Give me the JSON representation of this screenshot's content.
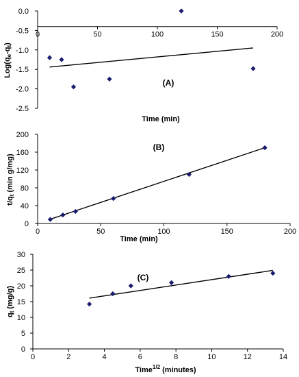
{
  "chart_data": [
    {
      "type": "scatter",
      "panel_label": "(A)",
      "xlabel": "Time (min)",
      "ylabel": "Log(qe-qt)",
      "xlim": [
        0,
        200
      ],
      "ylim": [
        -2.5,
        0.0
      ],
      "xticks": [
        "0",
        "50",
        "100",
        "150",
        "200"
      ],
      "yticks": [
        "0.0",
        "-0.5",
        "-1.0",
        "-1.5",
        "-2.0",
        "-2.5"
      ],
      "x_axis_position": "top (y = -0.4)",
      "points": [
        {
          "x": 10,
          "y": -1.2
        },
        {
          "x": 20,
          "y": -1.25
        },
        {
          "x": 30,
          "y": -1.95
        },
        {
          "x": 60,
          "y": -1.75
        },
        {
          "x": 120,
          "y": 0.0
        },
        {
          "x": 180,
          "y": -1.48
        }
      ],
      "fit_line": [
        {
          "x": 10,
          "y": -1.44
        },
        {
          "x": 180,
          "y": -0.95
        }
      ],
      "marker": "diamond",
      "color": "#1a1a6e"
    },
    {
      "type": "scatter",
      "panel_label": "(B)",
      "xlabel": "Time (min)",
      "ylabel": "t/qt (min g/mg)",
      "xlim": [
        0,
        200
      ],
      "ylim": [
        0,
        200
      ],
      "xticks": [
        "0",
        "50",
        "100",
        "150",
        "200"
      ],
      "yticks": [
        "0",
        "40",
        "80",
        "120",
        "160",
        "200"
      ],
      "points": [
        {
          "x": 10,
          "y": 9
        },
        {
          "x": 20,
          "y": 19
        },
        {
          "x": 30,
          "y": 27
        },
        {
          "x": 60,
          "y": 56
        },
        {
          "x": 120,
          "y": 110
        },
        {
          "x": 180,
          "y": 170
        }
      ],
      "fit_line": [
        {
          "x": 10,
          "y": 9.5
        },
        {
          "x": 180,
          "y": 170
        }
      ],
      "marker": "diamond",
      "color": "#1a1a6e"
    },
    {
      "type": "scatter",
      "panel_label": "(C)",
      "xlabel": "Time1/2 (minutes)",
      "ylabel": "qt (mg/g)",
      "xlim": [
        0,
        14
      ],
      "ylim": [
        0,
        30
      ],
      "xticks": [
        "0",
        "2",
        "4",
        "6",
        "8",
        "10",
        "12",
        "14"
      ],
      "yticks": [
        "0",
        "5",
        "10",
        "15",
        "20",
        "25",
        "30"
      ],
      "points": [
        {
          "x": 3.16,
          "y": 14.2
        },
        {
          "x": 4.47,
          "y": 17.5
        },
        {
          "x": 5.48,
          "y": 20.0
        },
        {
          "x": 7.75,
          "y": 21.0
        },
        {
          "x": 10.95,
          "y": 23.0
        },
        {
          "x": 13.42,
          "y": 24.0
        }
      ],
      "fit_line": [
        {
          "x": 3.16,
          "y": 16.1
        },
        {
          "x": 13.42,
          "y": 24.9
        }
      ],
      "marker": "diamond",
      "color": "#1a1a6e"
    }
  ]
}
